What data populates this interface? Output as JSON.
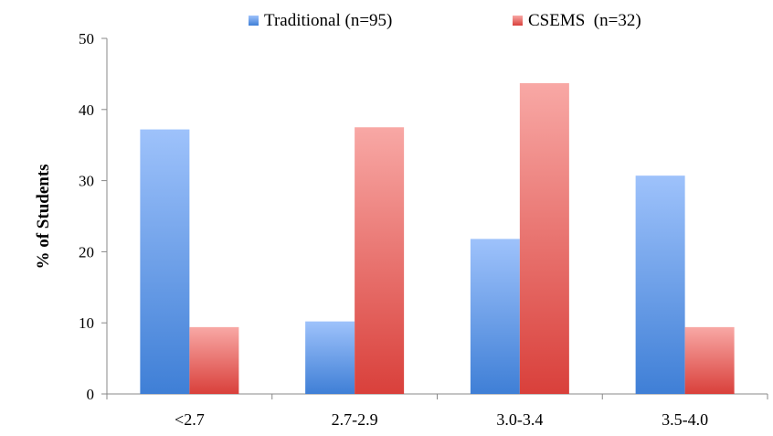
{
  "chart_data": {
    "type": "bar",
    "title": "",
    "xlabel": "",
    "ylabel": "% of Students",
    "ylim": [
      0,
      50
    ],
    "yticks": [
      0,
      10,
      20,
      30,
      40,
      50
    ],
    "grid": false,
    "legend": "top",
    "categories": [
      "<2.7",
      "2.7-2.9",
      "3.0-3.4",
      "3.5-4.0"
    ],
    "series": [
      {
        "name": "Traditional (n=95)",
        "values": [
          37.2,
          10.2,
          21.8,
          30.7
        ],
        "color_top": "#9ec2fb",
        "color_bottom": "#3f7fd6"
      },
      {
        "name": "CSEMS  (n=32)",
        "values": [
          9.4,
          37.5,
          43.7,
          9.4
        ],
        "color_top": "#f8a8a5",
        "color_bottom": "#d9403b"
      }
    ]
  }
}
